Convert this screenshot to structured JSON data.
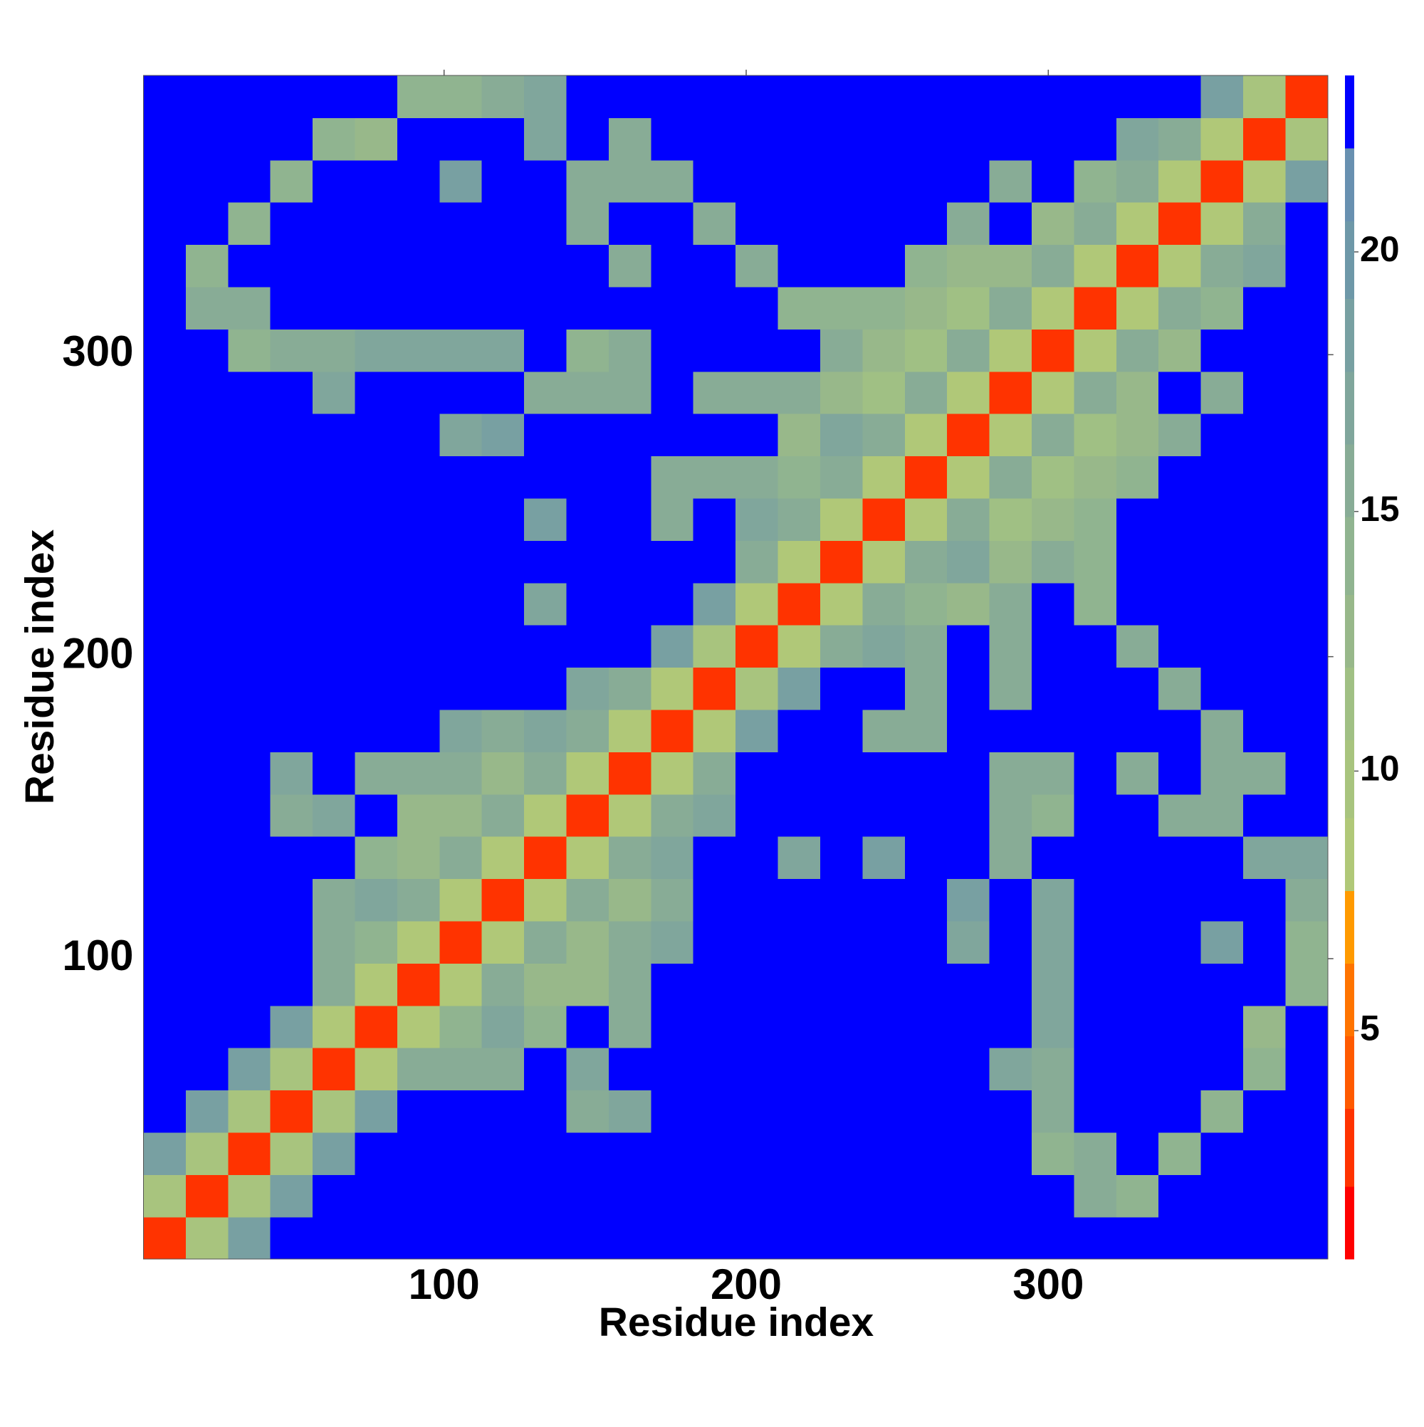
{
  "chart_data": {
    "type": "heatmap",
    "x_label": "Residue index",
    "y_label": "Residue index",
    "xlim": [
      0.5,
      392.5
    ],
    "ylim": [
      0.5,
      392.5
    ],
    "xticks": [
      100,
      200,
      300
    ],
    "yticks": [
      100,
      200,
      300
    ],
    "zlim": [
      0.6,
      23.4
    ],
    "zticks": [
      5,
      10,
      15,
      20
    ],
    "colorbar": {
      "levels": [
        0.6,
        2,
        3.5,
        4.9,
        6.3,
        7.7,
        9.1,
        10.6,
        12,
        13.4,
        14.9,
        16.3,
        17.7,
        19.1,
        20.6,
        22,
        23.4
      ],
      "colors": [
        "#ff0000",
        "#ff3300",
        "#ff5a00",
        "#ff7400",
        "#ff9a00",
        "#b0c878",
        "#a8c47e",
        "#a0c084",
        "#98b88a",
        "#90b490",
        "#88ac96",
        "#80a69c",
        "#78a0a2",
        "#6e98a8",
        "#6890b0",
        "#0000ff"
      ]
    },
    "z": [
      [
        3,
        10,
        19,
        22,
        22,
        22,
        22,
        22,
        22,
        22,
        22,
        22,
        22,
        22,
        22,
        22,
        22,
        22,
        22,
        22,
        22,
        22,
        22,
        22,
        22,
        22,
        22,
        22
      ],
      [
        10,
        3,
        10,
        19,
        22,
        22,
        22,
        22,
        22,
        22,
        22,
        22,
        22,
        22,
        22,
        22,
        22,
        22,
        22,
        22,
        22,
        22,
        15,
        14,
        22,
        22,
        22,
        22
      ],
      [
        19,
        10,
        3,
        10,
        19,
        22,
        22,
        22,
        22,
        22,
        22,
        22,
        22,
        22,
        22,
        22,
        22,
        22,
        22,
        22,
        22,
        14,
        15,
        22,
        14,
        22,
        22,
        22
      ],
      [
        22,
        19,
        10,
        3,
        10,
        19,
        22,
        22,
        22,
        22,
        16,
        17,
        22,
        22,
        22,
        22,
        22,
        22,
        22,
        22,
        22,
        15,
        22,
        22,
        22,
        14,
        22,
        22
      ],
      [
        22,
        22,
        19,
        10,
        3,
        9,
        15,
        15,
        15,
        22,
        17,
        22,
        22,
        22,
        22,
        22,
        22,
        22,
        22,
        22,
        17,
        16,
        22,
        22,
        22,
        22,
        14,
        22
      ],
      [
        22,
        22,
        22,
        19,
        9,
        3,
        9,
        14,
        17,
        14,
        22,
        16,
        22,
        22,
        22,
        22,
        22,
        22,
        22,
        22,
        22,
        17,
        22,
        22,
        22,
        22,
        13,
        22
      ],
      [
        22,
        22,
        22,
        22,
        15,
        9,
        3,
        9,
        15,
        12,
        13,
        16,
        22,
        22,
        22,
        22,
        22,
        22,
        22,
        22,
        22,
        17,
        22,
        22,
        22,
        22,
        22,
        14
      ],
      [
        22,
        22,
        22,
        22,
        15,
        14,
        9,
        3,
        9,
        15,
        13,
        15,
        17,
        22,
        22,
        22,
        22,
        22,
        22,
        17,
        22,
        17,
        22,
        22,
        22,
        18,
        22,
        14
      ],
      [
        22,
        22,
        22,
        22,
        15,
        17,
        15,
        9,
        3,
        9,
        15,
        13,
        15,
        22,
        22,
        22,
        22,
        22,
        22,
        18,
        22,
        17,
        22,
        22,
        22,
        22,
        22,
        15
      ],
      [
        22,
        22,
        22,
        22,
        22,
        14,
        12,
        15,
        9,
        3,
        9,
        15,
        17,
        22,
        22,
        17,
        22,
        18,
        22,
        22,
        15,
        22,
        22,
        22,
        22,
        22,
        17,
        17
      ],
      [
        22,
        22,
        22,
        16,
        17,
        22,
        13,
        13,
        15,
        9,
        3,
        9,
        15,
        17,
        22,
        22,
        22,
        22,
        22,
        22,
        16,
        14,
        22,
        22,
        15,
        16,
        22,
        22
      ],
      [
        22,
        22,
        22,
        17,
        22,
        16,
        16,
        15,
        13,
        15,
        9,
        3,
        9,
        15,
        22,
        22,
        22,
        22,
        22,
        22,
        16,
        15,
        22,
        16,
        22,
        15,
        16,
        22
      ],
      [
        22,
        22,
        22,
        22,
        22,
        22,
        22,
        17,
        15,
        17,
        15,
        9,
        3,
        9,
        19,
        22,
        22,
        16,
        16,
        22,
        22,
        22,
        22,
        22,
        22,
        15,
        22,
        22
      ],
      [
        22,
        22,
        22,
        22,
        22,
        22,
        22,
        22,
        22,
        22,
        17,
        15,
        9,
        3,
        10,
        19,
        22,
        22,
        15,
        22,
        15,
        22,
        22,
        22,
        15,
        22,
        22,
        22
      ],
      [
        22,
        22,
        22,
        22,
        22,
        22,
        22,
        22,
        22,
        22,
        22,
        22,
        19,
        10,
        3,
        9,
        15,
        17,
        15,
        22,
        15,
        22,
        22,
        15,
        22,
        22,
        22,
        22
      ],
      [
        22,
        22,
        22,
        22,
        22,
        22,
        22,
        22,
        22,
        17,
        22,
        22,
        22,
        19,
        9,
        3,
        9,
        15,
        14,
        13,
        16,
        22,
        14,
        22,
        22,
        22,
        22,
        22
      ],
      [
        22,
        22,
        22,
        22,
        22,
        22,
        22,
        22,
        22,
        22,
        22,
        22,
        22,
        22,
        15,
        9,
        3,
        9,
        15,
        17,
        12,
        15,
        14,
        22,
        22,
        22,
        22,
        22
      ],
      [
        22,
        22,
        22,
        22,
        22,
        22,
        22,
        22,
        22,
        18,
        22,
        22,
        16,
        22,
        17,
        15,
        9,
        3,
        9,
        15,
        11,
        12,
        14,
        22,
        22,
        22,
        22,
        22
      ],
      [
        22,
        22,
        22,
        22,
        22,
        22,
        22,
        22,
        22,
        22,
        22,
        22,
        16,
        15,
        15,
        14,
        15,
        9,
        3,
        9,
        15,
        11,
        12,
        14,
        22,
        22,
        22,
        22
      ],
      [
        22,
        22,
        22,
        22,
        22,
        22,
        22,
        17,
        18,
        22,
        22,
        22,
        22,
        22,
        22,
        13,
        17,
        15,
        9,
        3,
        9,
        15,
        11,
        13,
        15,
        22,
        22,
        22
      ],
      [
        22,
        22,
        22,
        22,
        17,
        22,
        22,
        22,
        22,
        15,
        16,
        16,
        22,
        15,
        15,
        16,
        12,
        11,
        15,
        9,
        3,
        9,
        15,
        12,
        22,
        16,
        22,
        22
      ],
      [
        22,
        22,
        14,
        15,
        16,
        17,
        17,
        17,
        17,
        22,
        14,
        15,
        22,
        22,
        22,
        22,
        15,
        12,
        11,
        15,
        9,
        3,
        9,
        15,
        13,
        22,
        22,
        22
      ],
      [
        22,
        15,
        15,
        22,
        22,
        22,
        22,
        22,
        22,
        22,
        22,
        22,
        22,
        22,
        22,
        14,
        14,
        14,
        12,
        11,
        15,
        9,
        3,
        9,
        15,
        14,
        22,
        22
      ],
      [
        22,
        14,
        22,
        22,
        22,
        22,
        22,
        22,
        22,
        22,
        22,
        16,
        22,
        22,
        15,
        22,
        22,
        22,
        14,
        13,
        12,
        15,
        9,
        3,
        9,
        15,
        17,
        22
      ],
      [
        22,
        22,
        14,
        22,
        22,
        22,
        22,
        22,
        22,
        22,
        15,
        22,
        22,
        15,
        22,
        22,
        22,
        22,
        22,
        15,
        22,
        13,
        15,
        9,
        3,
        9,
        15,
        22
      ],
      [
        22,
        22,
        22,
        14,
        22,
        22,
        22,
        18,
        22,
        22,
        16,
        15,
        15,
        22,
        22,
        22,
        22,
        22,
        22,
        22,
        16,
        22,
        14,
        15,
        9,
        3,
        9,
        19
      ],
      [
        22,
        22,
        22,
        22,
        14,
        13,
        22,
        22,
        22,
        17,
        22,
        16,
        22,
        22,
        22,
        22,
        22,
        22,
        22,
        22,
        22,
        22,
        22,
        17,
        15,
        9,
        3,
        10
      ],
      [
        22,
        22,
        22,
        22,
        22,
        22,
        14,
        14,
        15,
        17,
        22,
        22,
        22,
        22,
        22,
        22,
        22,
        22,
        22,
        22,
        22,
        22,
        22,
        22,
        22,
        19,
        10,
        3
      ]
    ]
  }
}
